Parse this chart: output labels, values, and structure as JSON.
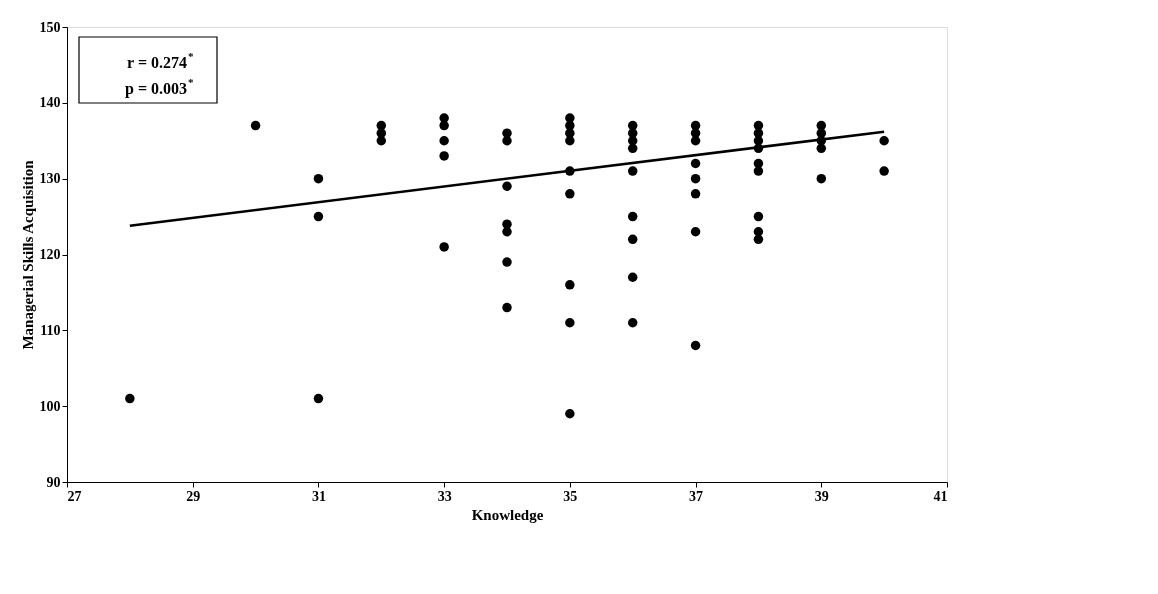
{
  "chart_data": {
    "type": "scatter",
    "xlabel": "Knowledge",
    "ylabel": "Managerial Skills Acquisition",
    "xlim": [
      27,
      41
    ],
    "xticks": [
      27,
      29,
      31,
      33,
      35,
      37,
      39,
      41
    ],
    "ylim": [
      90,
      150
    ],
    "yticks": [
      90,
      100,
      110,
      120,
      130,
      140,
      150
    ],
    "grid": false,
    "marker": "circle",
    "annotations": [
      "r = 0.274$^{*}$",
      "p = 0.003$^{*}$"
    ],
    "series": [
      {
        "color": "#000000",
        "x": [
          28,
          30,
          31,
          31,
          31,
          32,
          32,
          32,
          33,
          33,
          33,
          33,
          33,
          34,
          34,
          34,
          34,
          34,
          34,
          34,
          35,
          35,
          35,
          35,
          35,
          35,
          35,
          35,
          35,
          36,
          36,
          36,
          36,
          36,
          36,
          36,
          36,
          36,
          37,
          37,
          37,
          37,
          37,
          37,
          37,
          37,
          38,
          38,
          38,
          38,
          38,
          38,
          38,
          38,
          38,
          39,
          39,
          39,
          39,
          39,
          40,
          40
        ],
        "values": [
          101,
          137,
          130,
          125,
          101,
          137,
          136,
          135,
          138,
          137,
          135,
          133,
          121,
          136,
          135,
          129,
          124,
          123,
          119,
          113,
          138,
          137,
          136,
          135,
          131,
          128,
          116,
          111,
          99,
          137,
          136,
          135,
          134,
          131,
          125,
          122,
          117,
          111,
          137,
          136,
          135,
          132,
          130,
          128,
          123,
          108,
          137,
          136,
          135,
          134,
          132,
          131,
          125,
          123,
          122,
          137,
          136,
          135,
          134,
          130,
          135,
          131
        ]
      },
      {
        "type": "line",
        "color": "#000000",
        "line_style": "solid",
        "marker": "none",
        "x": [
          28,
          40
        ],
        "values": [
          123.8,
          136.2
        ]
      }
    ]
  }
}
